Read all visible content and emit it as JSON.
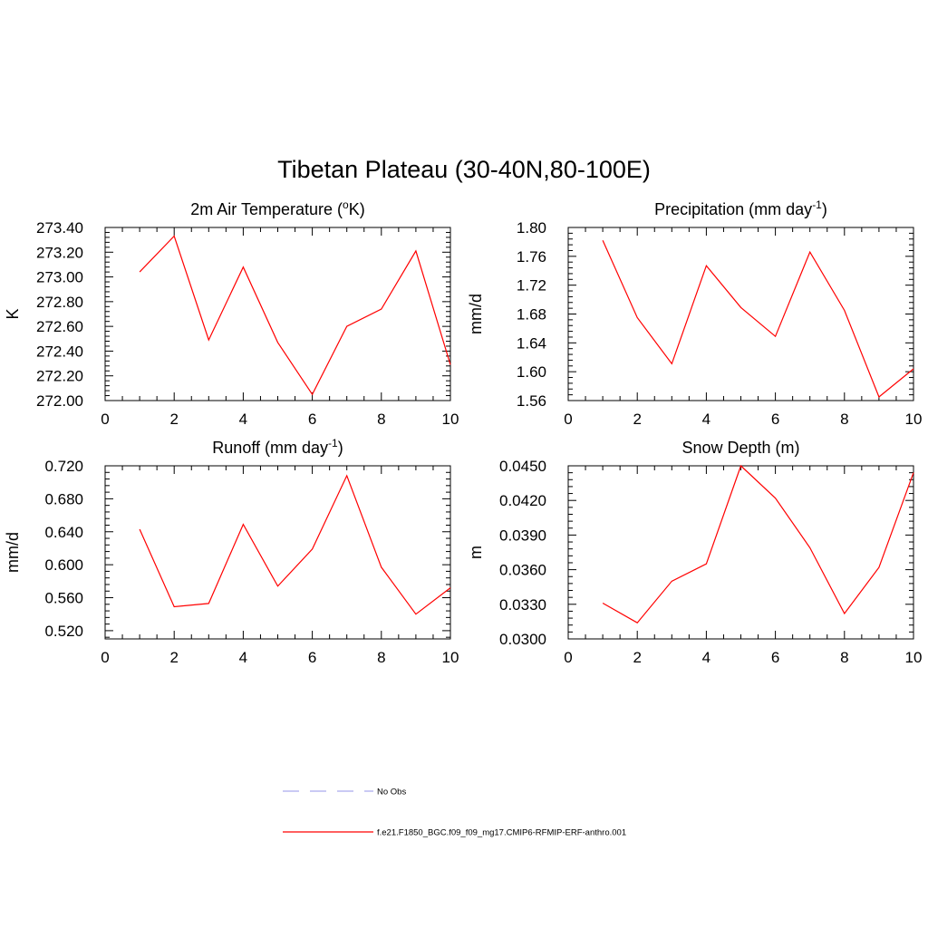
{
  "title": "Tibetan Plateau (30-40N,80-100E)",
  "chart_data": [
    {
      "type": "line",
      "title_main": "2m Air Temperature (",
      "title_sup": "o",
      "title_tail": "K)",
      "ylabel": "K",
      "xlim": [
        0,
        10
      ],
      "xticks": [
        0,
        2,
        4,
        6,
        8,
        10
      ],
      "ylim": [
        272.0,
        273.4
      ],
      "yticks": [
        "272.00",
        "272.20",
        "272.40",
        "272.60",
        "272.80",
        "273.00",
        "273.20",
        "273.40"
      ],
      "x": [
        1,
        2,
        3,
        4,
        5,
        6,
        7,
        8,
        9,
        10
      ],
      "values": [
        273.04,
        273.33,
        272.49,
        273.08,
        272.47,
        272.05,
        272.6,
        272.74,
        273.21,
        272.29
      ],
      "color": "#ff0000"
    },
    {
      "type": "line",
      "title_main": "Precipitation (mm day",
      "title_sup": "-1",
      "title_tail": ")",
      "ylabel": "mm/d",
      "xlim": [
        0,
        10
      ],
      "xticks": [
        0,
        2,
        4,
        6,
        8,
        10
      ],
      "ylim": [
        1.56,
        1.8
      ],
      "yticks": [
        "1.56",
        "1.60",
        "1.64",
        "1.68",
        "1.72",
        "1.76",
        "1.80"
      ],
      "x": [
        1,
        2,
        3,
        4,
        5,
        6,
        7,
        8,
        9,
        10
      ],
      "values": [
        1.782,
        1.675,
        1.611,
        1.747,
        1.689,
        1.649,
        1.766,
        1.685,
        1.565,
        1.604
      ],
      "color": "#ff0000"
    },
    {
      "type": "line",
      "title_main": "Runoff (mm day",
      "title_sup": "-1",
      "title_tail": ")",
      "ylabel": "mm/d",
      "xlim": [
        0,
        10
      ],
      "xticks": [
        0,
        2,
        4,
        6,
        8,
        10
      ],
      "ylim": [
        0.51,
        0.72
      ],
      "yticks": [
        "0.520",
        "0.560",
        "0.600",
        "0.640",
        "0.680",
        "0.720"
      ],
      "x": [
        1,
        2,
        3,
        4,
        5,
        6,
        7,
        8,
        9,
        10
      ],
      "values": [
        0.643,
        0.549,
        0.553,
        0.649,
        0.574,
        0.619,
        0.708,
        0.597,
        0.54,
        0.572
      ],
      "color": "#ff0000"
    },
    {
      "type": "line",
      "title_main": "Snow Depth (m)",
      "title_sup": "",
      "title_tail": "",
      "ylabel": "m",
      "xlim": [
        0,
        10
      ],
      "xticks": [
        0,
        2,
        4,
        6,
        8,
        10
      ],
      "ylim": [
        0.03,
        0.045
      ],
      "yticks": [
        "0.0300",
        "0.0330",
        "0.0360",
        "0.0390",
        "0.0420",
        "0.0450"
      ],
      "x": [
        1,
        2,
        3,
        4,
        5,
        6,
        7,
        8,
        9,
        10
      ],
      "values": [
        0.0331,
        0.0314,
        0.035,
        0.0365,
        0.045,
        0.0422,
        0.0379,
        0.0322,
        0.0362,
        0.0444
      ],
      "color": "#ff0000"
    }
  ],
  "legend": [
    {
      "label": "No Obs",
      "style": "dashed",
      "color": "#aaaaee"
    },
    {
      "label": "f.e21.F1850_BGC.f09_f09_mg17.CMIP6-RFMIP-ERF-anthro.001",
      "style": "solid",
      "color": "#ff0000"
    }
  ]
}
